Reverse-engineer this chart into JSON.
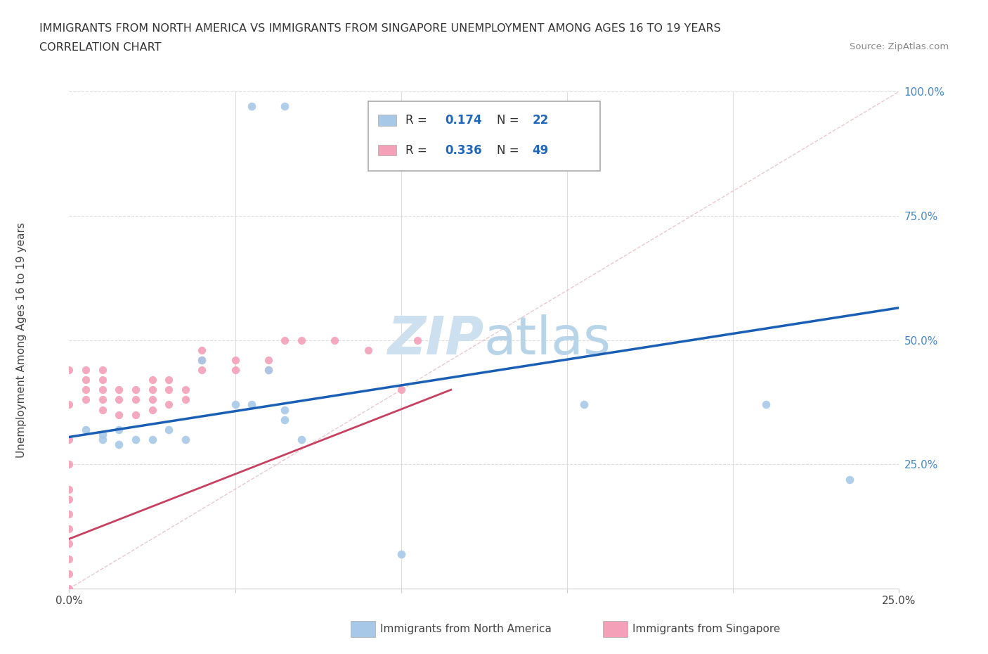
{
  "title_line1": "IMMIGRANTS FROM NORTH AMERICA VS IMMIGRANTS FROM SINGAPORE UNEMPLOYMENT AMONG AGES 16 TO 19 YEARS",
  "title_line2": "CORRELATION CHART",
  "source_text": "Source: ZipAtlas.com",
  "ylabel": "Unemployment Among Ages 16 to 19 years",
  "xlim": [
    0.0,
    0.25
  ],
  "ylim": [
    0.0,
    1.0
  ],
  "r_north_america": 0.174,
  "n_north_america": 22,
  "r_singapore": 0.336,
  "n_singapore": 49,
  "color_north_america": "#a8c8e8",
  "color_singapore": "#f4a0b8",
  "trend_color_north_america": "#1a5fb4",
  "trend_color_singapore": "#c84060",
  "watermark_color": "#cce0f0",
  "background_color": "#ffffff",
  "grid_color": "#dddddd",
  "na_x": [
    0.055,
    0.065,
    0.005,
    0.01,
    0.01,
    0.015,
    0.015,
    0.02,
    0.025,
    0.03,
    0.035,
    0.04,
    0.05,
    0.055,
    0.06,
    0.065,
    0.065,
    0.07,
    0.1,
    0.155,
    0.21,
    0.235
  ],
  "na_y": [
    0.97,
    0.97,
    0.32,
    0.31,
    0.3,
    0.32,
    0.29,
    0.3,
    0.3,
    0.32,
    0.3,
    0.46,
    0.37,
    0.37,
    0.44,
    0.36,
    0.34,
    0.3,
    0.07,
    0.37,
    0.37,
    0.22
  ],
  "sg_x": [
    0.0,
    0.0,
    0.0,
    0.0,
    0.0,
    0.0,
    0.0,
    0.0,
    0.0,
    0.0,
    0.0,
    0.0,
    0.005,
    0.005,
    0.005,
    0.005,
    0.01,
    0.01,
    0.01,
    0.01,
    0.01,
    0.015,
    0.015,
    0.015,
    0.02,
    0.02,
    0.02,
    0.025,
    0.025,
    0.025,
    0.025,
    0.03,
    0.03,
    0.03,
    0.035,
    0.035,
    0.04,
    0.04,
    0.04,
    0.05,
    0.05,
    0.06,
    0.06,
    0.065,
    0.07,
    0.08,
    0.09,
    0.1,
    0.105
  ],
  "sg_y": [
    0.0,
    0.03,
    0.06,
    0.09,
    0.12,
    0.15,
    0.18,
    0.2,
    0.25,
    0.3,
    0.37,
    0.44,
    0.38,
    0.4,
    0.42,
    0.44,
    0.36,
    0.38,
    0.4,
    0.42,
    0.44,
    0.35,
    0.38,
    0.4,
    0.35,
    0.38,
    0.4,
    0.36,
    0.38,
    0.4,
    0.42,
    0.37,
    0.4,
    0.42,
    0.38,
    0.4,
    0.44,
    0.46,
    0.48,
    0.44,
    0.46,
    0.44,
    0.46,
    0.5,
    0.5,
    0.5,
    0.48,
    0.4,
    0.5
  ],
  "na_trend_x": [
    0.0,
    0.25
  ],
  "na_trend_y": [
    0.305,
    0.565
  ],
  "sg_trend_x": [
    0.0,
    0.115
  ],
  "sg_trend_y": [
    0.1,
    0.4
  ]
}
